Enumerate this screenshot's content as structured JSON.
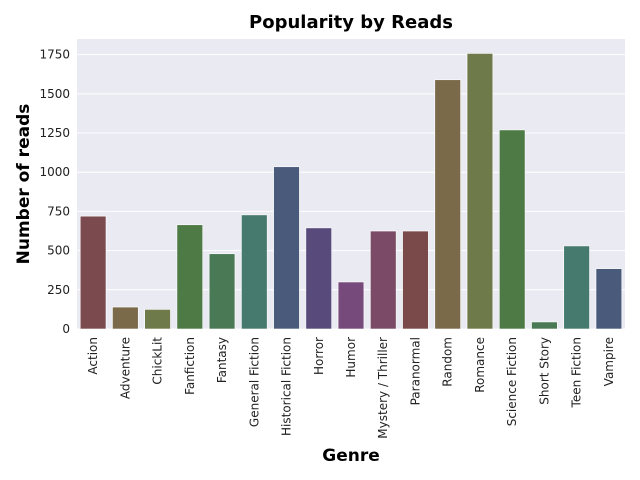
{
  "chart_data": {
    "type": "bar",
    "title": "Popularity by Reads",
    "xlabel": "Genre",
    "ylabel": "Number of reads",
    "categories": [
      "Action",
      "Adventure",
      "ChickLit",
      "Fanfiction",
      "Fantasy",
      "General Fiction",
      "Historical Fiction",
      "Horror",
      "Humor",
      "Mystery / Thriller",
      "Paranormal",
      "Random",
      "Romance",
      "Science Fiction",
      "Short Story",
      "Teen Fiction",
      "Vampire"
    ],
    "values": [
      720,
      140,
      125,
      665,
      480,
      728,
      1035,
      645,
      300,
      625,
      625,
      1590,
      1758,
      1270,
      45,
      530,
      385
    ],
    "colors": [
      "#7a4a4f",
      "#7a6a4a",
      "#6e7a4a",
      "#4e7a46",
      "#4a7a55",
      "#477a6e",
      "#4a5a7a",
      "#584a7a",
      "#764a7a",
      "#7a4a66",
      "#7a4a4a",
      "#7a6a4a",
      "#6e7a4a",
      "#4e7a46",
      "#4a7a55",
      "#477a6e",
      "#4a5a7a"
    ],
    "yticks": [
      0,
      250,
      500,
      750,
      1000,
      1250,
      1500,
      1750
    ],
    "ylim": [
      0,
      1850
    ],
    "grid": true,
    "background": "#eaeaf2"
  }
}
